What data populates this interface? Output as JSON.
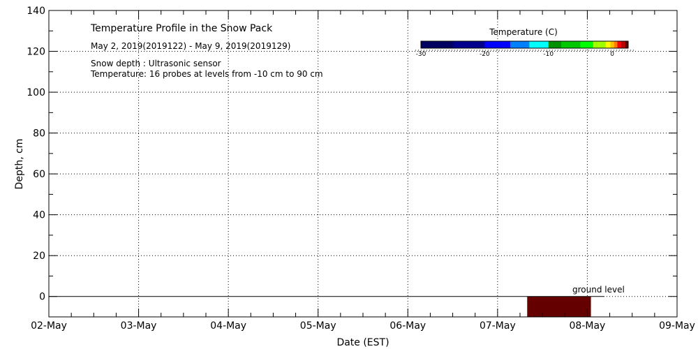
{
  "chart_data": {
    "type": "heatmap",
    "title": "Temperature Profile in the Snow Pack",
    "subtitle": "May  2, 2019(2019122) - May  9, 2019(2019129)",
    "notes": [
      "Snow depth : Ultrasonic sensor",
      "Temperature: 16 probes at levels from -10 cm to 90 cm"
    ],
    "xlabel": "Date (EST)",
    "ylabel": "Depth, cm",
    "x_ticks": [
      "02-May",
      "03-May",
      "04-May",
      "05-May",
      "06-May",
      "07-May",
      "08-May",
      "09-May"
    ],
    "y_ticks": [
      0,
      20,
      40,
      60,
      80,
      100,
      120,
      140
    ],
    "ylim": [
      -10,
      140
    ],
    "grid": true,
    "ground_label": "ground level",
    "ground_level": 0,
    "colorbar": {
      "title": "Temperature (C)",
      "range": [
        -30,
        2.5
      ],
      "ticks": [
        -30,
        -20,
        -10,
        0
      ],
      "colors": [
        {
          "from": -30,
          "to": -25,
          "color": "#000060"
        },
        {
          "from": -25,
          "to": -20,
          "color": "#00008c"
        },
        {
          "from": -20,
          "to": -16,
          "color": "#0000ff"
        },
        {
          "from": -16,
          "to": -13,
          "color": "#0080ff"
        },
        {
          "from": -13,
          "to": -10,
          "color": "#00ffff"
        },
        {
          "from": -10,
          "to": -8,
          "color": "#009000"
        },
        {
          "from": -8,
          "to": -5,
          "color": "#00c800"
        },
        {
          "from": -5,
          "to": -3,
          "color": "#00ff00"
        },
        {
          "from": -3,
          "to": -1,
          "color": "#a0ff00"
        },
        {
          "from": -1,
          "to": -0.3,
          "color": "#ffff00"
        },
        {
          "from": -0.3,
          "to": 0.3,
          "color": "#ffc000"
        },
        {
          "from": 0.3,
          "to": 0.8,
          "color": "#ff8000"
        },
        {
          "from": 0.8,
          "to": 1.4,
          "color": "#ff0000"
        },
        {
          "from": 1.4,
          "to": 2.0,
          "color": "#c00000"
        },
        {
          "from": 2.0,
          "to": 2.5,
          "color": "#600000"
        }
      ]
    },
    "data_blocks": [
      {
        "x_start_day": 5.33,
        "x_end_day": 6.04,
        "depth_top": 0,
        "depth_bottom": -10,
        "color": "#640000"
      }
    ]
  }
}
